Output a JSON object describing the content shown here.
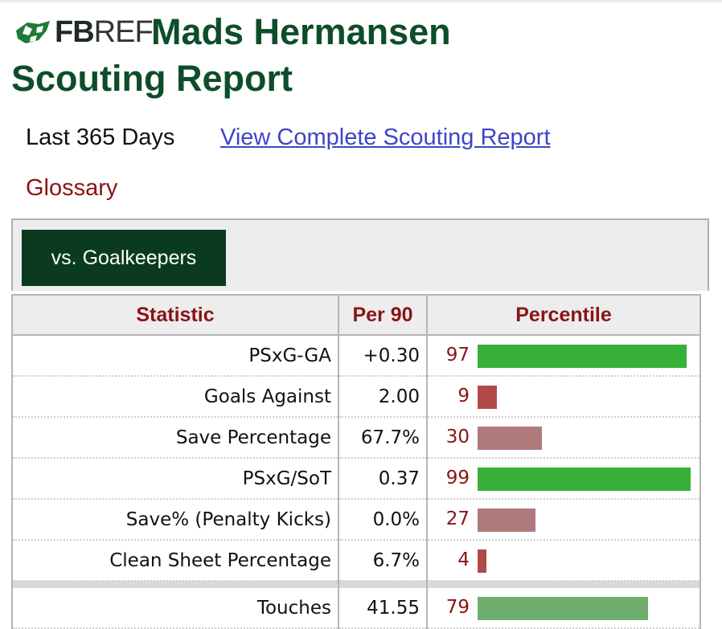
{
  "header": {
    "logo_fb": "FB",
    "logo_ref": "REF",
    "title_line1": "Mads Hermansen",
    "title_line2": "Scouting Report"
  },
  "links": {
    "period": "Last 365 Days",
    "full_report": "View Complete Scouting Report",
    "glossary": "Glossary"
  },
  "filter": {
    "button_label": "vs. Goalkeepers"
  },
  "table": {
    "headers": {
      "statistic": "Statistic",
      "per90": "Per 90",
      "percentile": "Percentile"
    },
    "rows": [
      {
        "stat": "PSxG-GA",
        "per90": "+0.30",
        "percentile": 97
      },
      {
        "stat": "Goals Against",
        "per90": "2.00",
        "percentile": 9
      },
      {
        "stat": "Save Percentage",
        "per90": "67.7%",
        "percentile": 30
      },
      {
        "stat": "PSxG/SoT",
        "per90": "0.37",
        "percentile": 99
      },
      {
        "stat": "Save% (Penalty Kicks)",
        "per90": "0.0%",
        "percentile": 27
      },
      {
        "stat": "Clean Sheet Percentage",
        "per90": "6.7%",
        "percentile": 4
      }
    ],
    "next_row": {
      "stat": "Touches",
      "per90": "41.55",
      "percentile": 79
    }
  },
  "colors": {
    "brand_green": "#0d4d2a",
    "high_bar": "#37b03a",
    "mid_bar": "#b07a7c",
    "low_bar": "#b24a4c",
    "good_mid_bar": "#6fae6c",
    "accent_red": "#8a1414"
  }
}
